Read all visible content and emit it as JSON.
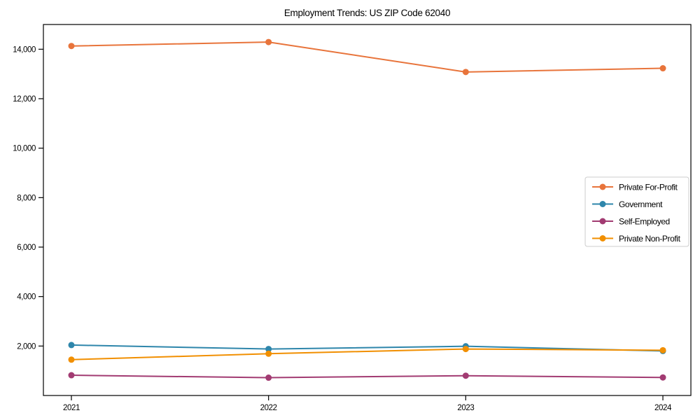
{
  "chart_data": {
    "type": "line",
    "title": "Employment Trends: US ZIP Code 62040",
    "xlabel": "",
    "ylabel": "",
    "categories": [
      "2021",
      "2022",
      "2023",
      "2024"
    ],
    "series": [
      {
        "name": "Private For-Profit",
        "color": "#E8743B",
        "values": [
          14130,
          14290,
          13080,
          13230
        ]
      },
      {
        "name": "Government",
        "color": "#2E86AB",
        "values": [
          2040,
          1880,
          1990,
          1800
        ]
      },
      {
        "name": "Self-Employed",
        "color": "#A23B72",
        "values": [
          820,
          720,
          800,
          730
        ]
      },
      {
        "name": "Private Non-Profit",
        "color": "#F18F01",
        "values": [
          1450,
          1690,
          1880,
          1830
        ]
      }
    ],
    "ylim": [
      0,
      15000
    ],
    "yticks": [
      2000,
      4000,
      6000,
      8000,
      10000,
      12000,
      14000
    ],
    "ytick_label_format": "thousands-comma",
    "grid": false,
    "legend_position": "center-right",
    "legend_border_color": "#cccccc",
    "marker": "circle",
    "line_width": 2,
    "marker_radius": 4.5,
    "spine_color": "#000000",
    "background_color": "#ffffff"
  }
}
